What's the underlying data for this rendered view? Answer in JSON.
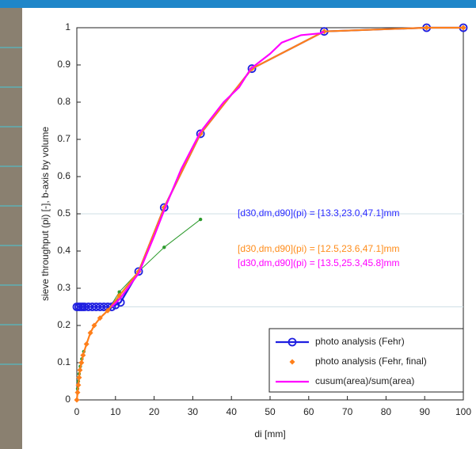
{
  "chart_data": {
    "type": "line",
    "xlabel": "di [mm]",
    "ylabel": "sieve throughput (pi) [-], b-axis by volume",
    "xlim": [
      0,
      100
    ],
    "xticks": [
      0,
      10,
      20,
      30,
      40,
      50,
      60,
      70,
      80,
      90,
      100
    ],
    "ylim": [
      0,
      1
    ],
    "yticks": [
      0,
      0.1,
      0.2,
      0.3,
      0.4,
      0.5,
      0.6,
      0.7,
      0.8,
      0.9,
      1
    ],
    "hlines": [
      0.25,
      0.5
    ],
    "legend": "lower right",
    "annotations": [
      {
        "text": "[d30,dm,d90](pi) = [13.3,23.0,47.1]mm",
        "color": "#2a2aff"
      },
      {
        "text": "[d30,dm,d90](pi) = [12.5,23.6,47.1]mm",
        "color": "#ff8c1a"
      },
      {
        "text": "[d30,dm,d90](pi) = [13.5,25.3,45.8]mm",
        "color": "#ff00ff"
      }
    ],
    "series": [
      {
        "color": "#2e9b2e",
        "marker": "dot",
        "x": [
          0,
          0.2,
          0.4,
          0.6,
          0.9,
          1.3,
          1.8,
          2.5,
          3.5,
          4.5,
          6,
          8,
          11,
          16,
          22.6,
          32
        ],
        "values": [
          0,
          0.03,
          0.05,
          0.07,
          0.09,
          0.11,
          0.13,
          0.15,
          0.18,
          0.2,
          0.22,
          0.24,
          0.29,
          0.345,
          0.41,
          0.485
        ]
      },
      {
        "name": "photo analysis (Fehr)",
        "color": "#1f1fe0",
        "marker": "circle",
        "x": [
          0,
          0.5,
          1,
          1.5,
          2,
          3,
          4,
          5,
          6,
          7,
          8,
          9,
          10,
          11.3,
          16,
          22.6,
          32,
          45.3,
          64,
          90.5,
          100
        ],
        "values": [
          0.25,
          0.25,
          0.25,
          0.25,
          0.25,
          0.25,
          0.25,
          0.25,
          0.25,
          0.25,
          0.25,
          0.25,
          0.255,
          0.262,
          0.345,
          0.517,
          0.715,
          0.89,
          0.99,
          1,
          1
        ]
      },
      {
        "name": "photo analysis (Fehr, final)",
        "color": "#ff7f1a",
        "marker": "diamond",
        "x": [
          0,
          0.2,
          0.4,
          0.6,
          0.8,
          1.2,
          1.6,
          2.5,
          3.5,
          4.5,
          6,
          8,
          11,
          16,
          22.6,
          32,
          45.3,
          64,
          90.5,
          100
        ],
        "values": [
          0,
          0.02,
          0.04,
          0.06,
          0.08,
          0.1,
          0.12,
          0.15,
          0.18,
          0.2,
          0.22,
          0.24,
          0.28,
          0.345,
          0.517,
          0.715,
          0.89,
          0.99,
          1,
          1
        ]
      },
      {
        "name": "cusum(area)/sum(area)",
        "color": "#ff00ff",
        "marker": "none",
        "x": [
          9,
          11,
          16,
          20,
          23,
          27,
          32,
          38,
          42,
          45,
          50,
          53,
          58,
          63,
          64
        ],
        "values": [
          0.25,
          0.27,
          0.34,
          0.44,
          0.52,
          0.62,
          0.72,
          0.8,
          0.84,
          0.89,
          0.93,
          0.96,
          0.98,
          0.985,
          0.99
        ]
      }
    ]
  }
}
